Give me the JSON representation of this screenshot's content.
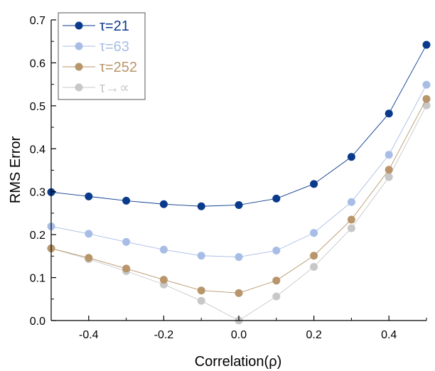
{
  "chart_data": {
    "type": "line",
    "xlabel": "Correlation(ρ)",
    "ylabel": "RMS Error",
    "xlim": [
      -0.5,
      0.5
    ],
    "ylim": [
      0.0,
      0.7
    ],
    "x_ticks": [
      -0.4,
      -0.2,
      0.0,
      0.2,
      0.4
    ],
    "x_tick_labels": [
      "-0.4",
      "-0.2",
      "0.0",
      "0.2",
      "0.4"
    ],
    "y_ticks": [
      0.0,
      0.1,
      0.2,
      0.3,
      0.4,
      0.5,
      0.6,
      0.7
    ],
    "y_tick_labels": [
      "0.0",
      "0.1",
      "0.2",
      "0.3",
      "0.4",
      "0.5",
      "0.6",
      "0.7"
    ],
    "grid": false,
    "legend_position": "top-left",
    "x": [
      -0.5,
      -0.4,
      -0.3,
      -0.2,
      -0.1,
      0.0,
      0.1,
      0.2,
      0.3,
      0.4,
      0.5
    ],
    "series": [
      {
        "name": "τ=21",
        "color": "#0a3a8c",
        "values": [
          0.299,
          0.289,
          0.279,
          0.271,
          0.266,
          0.269,
          0.284,
          0.318,
          0.381,
          0.482,
          0.642
        ]
      },
      {
        "name": "τ=63",
        "color": "#a8bde6",
        "values": [
          0.219,
          0.202,
          0.183,
          0.165,
          0.151,
          0.148,
          0.163,
          0.204,
          0.276,
          0.386,
          0.549
        ]
      },
      {
        "name": "τ=252",
        "color": "#b8956a",
        "values": [
          0.168,
          0.146,
          0.121,
          0.095,
          0.07,
          0.064,
          0.093,
          0.151,
          0.235,
          0.351,
          0.516
        ]
      },
      {
        "name": "τ→∝",
        "color": "#c8c8c8",
        "values": [
          0.168,
          0.143,
          0.115,
          0.084,
          0.046,
          0.0,
          0.056,
          0.125,
          0.215,
          0.334,
          0.501
        ]
      }
    ]
  }
}
